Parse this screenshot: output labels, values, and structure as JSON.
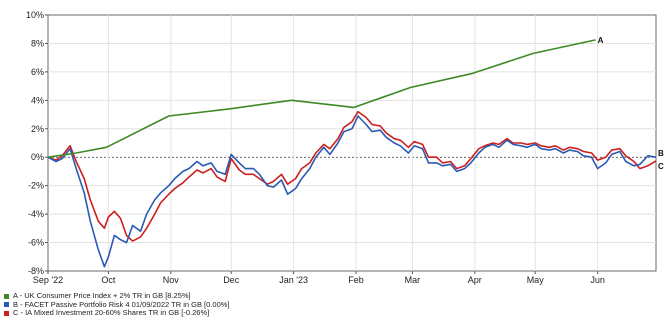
{
  "chart_data": {
    "type": "line",
    "ylim": [
      -8,
      10
    ],
    "y_ticks": [
      10,
      8,
      6,
      4,
      2,
      0,
      -2,
      -4,
      -6,
      -8
    ],
    "y_tick_labels": [
      "10%",
      "8%",
      "6%",
      "4%",
      "2%",
      "0%",
      "-2%",
      "-4%",
      "-6%",
      "-8%"
    ],
    "x_tick_labels": [
      "Sep '22",
      "Oct",
      "Nov",
      "Dec",
      "Jan '23",
      "Feb",
      "Mar",
      "Apr",
      "May",
      "Jun"
    ],
    "x_ticks": [
      "2022-09-01",
      "2022-10-01",
      "2022-11-01",
      "2022-12-01",
      "2023-01-01",
      "2023-02-01",
      "2023-03-01",
      "2023-04-01",
      "2023-05-01",
      "2023-06-01"
    ],
    "x_range": [
      "2022-09-01",
      "2023-06-30"
    ],
    "grid": true,
    "zero_line": "dashed",
    "series": [
      {
        "name": "A - UK Consumer Price Index + 2% TR in GB [8.25%]",
        "end_label": "A",
        "color": "#3f8a26",
        "x": [
          "2022-09-01",
          "2022-09-15",
          "2022-09-30",
          "2022-10-31",
          "2022-11-30",
          "2022-12-31",
          "2023-01-31",
          "2023-02-28",
          "2023-03-31",
          "2023-04-30",
          "2023-05-31"
        ],
        "y": [
          0,
          0.3,
          0.7,
          2.9,
          3.4,
          4.0,
          3.5,
          4.9,
          5.9,
          7.3,
          8.25
        ]
      },
      {
        "name": "B - FACET Passive Portfolio Risk 4 01/09/2022 TR in GB [0.00%]",
        "end_label": "B",
        "color": "#2a5ab4",
        "x": [
          "2022-09-01",
          "2022-09-05",
          "2022-09-08",
          "2022-09-12",
          "2022-09-15",
          "2022-09-19",
          "2022-09-22",
          "2022-09-26",
          "2022-09-29",
          "2022-10-01",
          "2022-10-04",
          "2022-10-07",
          "2022-10-10",
          "2022-10-13",
          "2022-10-17",
          "2022-10-20",
          "2022-10-24",
          "2022-10-27",
          "2022-10-31",
          "2022-11-03",
          "2022-11-07",
          "2022-11-10",
          "2022-11-14",
          "2022-11-17",
          "2022-11-21",
          "2022-11-24",
          "2022-11-28",
          "2022-12-01",
          "2022-12-05",
          "2022-12-08",
          "2022-12-12",
          "2022-12-15",
          "2022-12-19",
          "2022-12-22",
          "2022-12-26",
          "2022-12-29",
          "2023-01-02",
          "2023-01-05",
          "2023-01-09",
          "2023-01-12",
          "2023-01-16",
          "2023-01-19",
          "2023-01-23",
          "2023-01-26",
          "2023-01-30",
          "2023-02-02",
          "2023-02-06",
          "2023-02-09",
          "2023-02-13",
          "2023-02-16",
          "2023-02-20",
          "2023-02-23",
          "2023-02-27",
          "2023-03-02",
          "2023-03-06",
          "2023-03-09",
          "2023-03-13",
          "2023-03-16",
          "2023-03-20",
          "2023-03-23",
          "2023-03-27",
          "2023-03-30",
          "2023-04-03",
          "2023-04-06",
          "2023-04-10",
          "2023-04-13",
          "2023-04-17",
          "2023-04-20",
          "2023-04-24",
          "2023-04-27",
          "2023-05-01",
          "2023-05-04",
          "2023-05-08",
          "2023-05-11",
          "2023-05-15",
          "2023-05-18",
          "2023-05-22",
          "2023-05-25",
          "2023-05-29",
          "2023-06-01",
          "2023-06-05",
          "2023-06-08",
          "2023-06-12",
          "2023-06-15",
          "2023-06-19",
          "2023-06-22",
          "2023-06-26",
          "2023-06-30"
        ],
        "y": [
          0,
          -0.3,
          -0.1,
          0.6,
          -0.8,
          -2.5,
          -4.5,
          -6.5,
          -7.7,
          -7.0,
          -5.5,
          -5.8,
          -6.0,
          -4.8,
          -5.2,
          -4.0,
          -3.0,
          -2.5,
          -2.0,
          -1.5,
          -1.0,
          -0.8,
          -0.3,
          -0.6,
          -0.4,
          -1.0,
          -1.2,
          0.2,
          -0.4,
          -0.8,
          -0.8,
          -1.2,
          -2.0,
          -2.1,
          -1.6,
          -2.6,
          -2.2,
          -1.5,
          -0.8,
          0.0,
          0.7,
          0.2,
          1.0,
          1.8,
          2.0,
          2.9,
          2.3,
          1.8,
          1.9,
          1.4,
          1.0,
          0.8,
          0.3,
          0.8,
          0.6,
          -0.4,
          -0.4,
          -0.6,
          -0.5,
          -1.0,
          -0.8,
          -0.4,
          0.3,
          0.7,
          0.9,
          0.7,
          1.2,
          0.9,
          0.8,
          0.7,
          0.9,
          0.6,
          0.5,
          0.6,
          0.3,
          0.5,
          0.4,
          0.1,
          0.0,
          -0.8,
          -0.4,
          0.2,
          0.4,
          -0.3,
          -0.6,
          -0.5,
          0.1,
          0.0
        ]
      },
      {
        "name": "C - IA Mixed Investment 20-60% Shares TR in GB [-0.26%]",
        "end_label": "C",
        "color": "#cc1f1f",
        "x": [
          "2022-09-01",
          "2022-09-05",
          "2022-09-08",
          "2022-09-12",
          "2022-09-15",
          "2022-09-19",
          "2022-09-22",
          "2022-09-26",
          "2022-09-29",
          "2022-10-01",
          "2022-10-04",
          "2022-10-07",
          "2022-10-10",
          "2022-10-13",
          "2022-10-17",
          "2022-10-20",
          "2022-10-24",
          "2022-10-27",
          "2022-10-31",
          "2022-11-03",
          "2022-11-07",
          "2022-11-10",
          "2022-11-14",
          "2022-11-17",
          "2022-11-21",
          "2022-11-24",
          "2022-11-28",
          "2022-12-01",
          "2022-12-05",
          "2022-12-08",
          "2022-12-12",
          "2022-12-15",
          "2022-12-19",
          "2022-12-22",
          "2022-12-26",
          "2022-12-29",
          "2023-01-02",
          "2023-01-05",
          "2023-01-09",
          "2023-01-12",
          "2023-01-16",
          "2023-01-19",
          "2023-01-23",
          "2023-01-26",
          "2023-01-30",
          "2023-02-02",
          "2023-02-06",
          "2023-02-09",
          "2023-02-13",
          "2023-02-16",
          "2023-02-20",
          "2023-02-23",
          "2023-02-27",
          "2023-03-02",
          "2023-03-06",
          "2023-03-09",
          "2023-03-13",
          "2023-03-16",
          "2023-03-20",
          "2023-03-23",
          "2023-03-27",
          "2023-03-30",
          "2023-04-03",
          "2023-04-06",
          "2023-04-10",
          "2023-04-13",
          "2023-04-17",
          "2023-04-20",
          "2023-04-24",
          "2023-04-27",
          "2023-05-01",
          "2023-05-04",
          "2023-05-08",
          "2023-05-11",
          "2023-05-15",
          "2023-05-18",
          "2023-05-22",
          "2023-05-25",
          "2023-05-29",
          "2023-06-01",
          "2023-06-05",
          "2023-06-08",
          "2023-06-12",
          "2023-06-15",
          "2023-06-19",
          "2023-06-22",
          "2023-06-26",
          "2023-06-30"
        ],
        "y": [
          0,
          -0.2,
          0.1,
          0.8,
          -0.3,
          -1.5,
          -3.0,
          -4.5,
          -5.0,
          -4.2,
          -3.8,
          -4.3,
          -5.5,
          -5.9,
          -5.6,
          -5.0,
          -4.0,
          -3.2,
          -2.6,
          -2.2,
          -1.8,
          -1.4,
          -0.9,
          -1.1,
          -0.8,
          -1.4,
          -1.7,
          -0.1,
          -0.9,
          -1.2,
          -1.2,
          -1.5,
          -1.9,
          -1.7,
          -1.2,
          -1.9,
          -1.5,
          -0.8,
          -0.4,
          0.3,
          0.9,
          0.6,
          1.3,
          2.1,
          2.5,
          3.2,
          2.8,
          2.3,
          2.2,
          1.7,
          1.3,
          1.2,
          0.7,
          1.1,
          0.9,
          0.0,
          0.0,
          -0.4,
          -0.3,
          -0.8,
          -0.6,
          -0.1,
          0.6,
          0.8,
          1.0,
          0.9,
          1.3,
          1.0,
          1.0,
          0.9,
          1.0,
          0.8,
          0.7,
          0.8,
          0.5,
          0.7,
          0.6,
          0.4,
          0.3,
          -0.2,
          0.0,
          0.5,
          0.6,
          0.1,
          -0.3,
          -0.8,
          -0.6,
          -0.26
        ]
      }
    ]
  }
}
